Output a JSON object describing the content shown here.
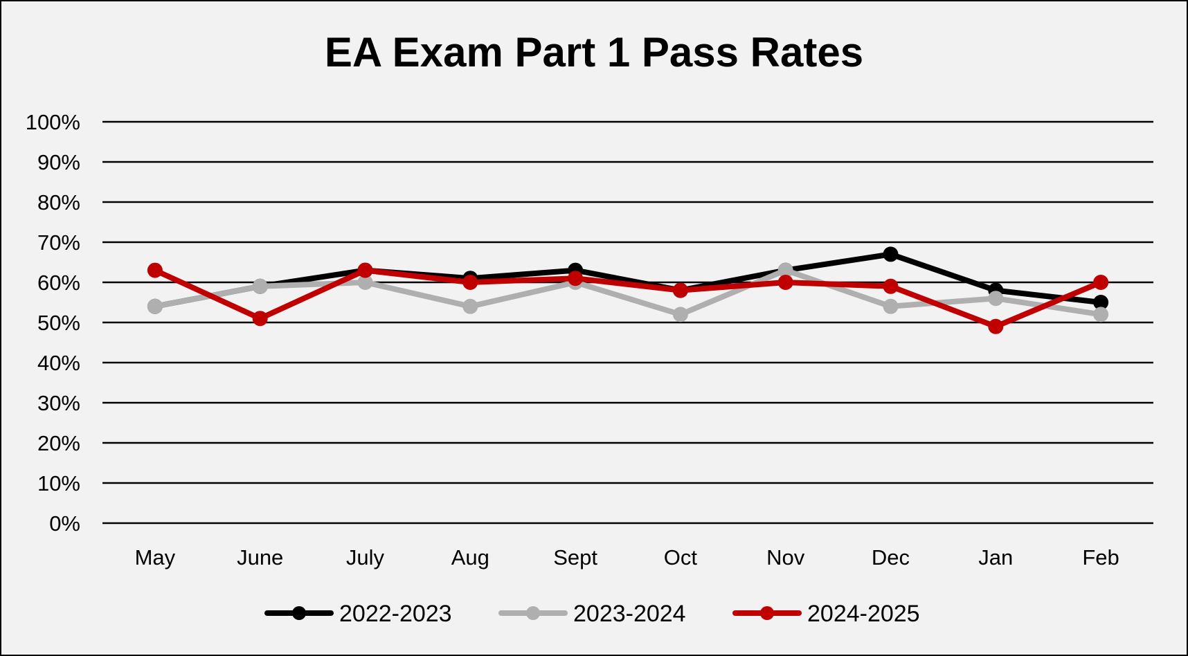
{
  "chart_data": {
    "type": "line",
    "title": "EA Exam Part 1 Pass Rates",
    "xlabel": "",
    "ylabel": "",
    "categories": [
      "May",
      "June",
      "July",
      "Aug",
      "Sept",
      "Oct",
      "Nov",
      "Dec",
      "Jan",
      "Feb"
    ],
    "ylim": [
      0,
      100
    ],
    "yticks": [
      0,
      10,
      20,
      30,
      40,
      50,
      60,
      70,
      80,
      90,
      100
    ],
    "ytick_labels": [
      "0%",
      "10%",
      "20%",
      "30%",
      "40%",
      "50%",
      "60%",
      "70%",
      "80%",
      "90%",
      "100%"
    ],
    "y_unit": "%",
    "grid": true,
    "legend_position": "bottom",
    "series": [
      {
        "name": "2022-2023",
        "color": "#000000",
        "values": [
          54,
          59,
          63,
          61,
          63,
          58,
          63,
          67,
          58,
          55
        ]
      },
      {
        "name": "2023-2024",
        "color": "#b0afaf",
        "values": [
          54,
          59,
          60,
          54,
          60,
          52,
          63,
          54,
          56,
          52
        ]
      },
      {
        "name": "2024-2025",
        "color": "#c00000",
        "values": [
          63,
          51,
          63,
          60,
          61,
          58,
          60,
          59,
          49,
          60
        ]
      }
    ]
  }
}
